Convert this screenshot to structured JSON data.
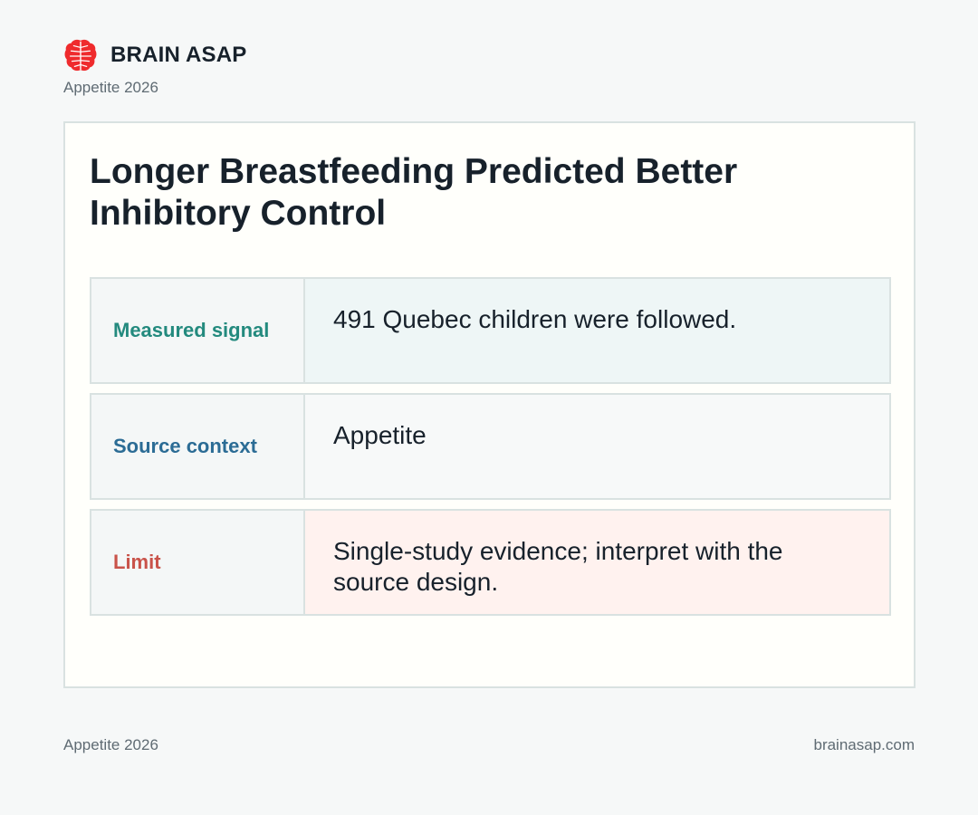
{
  "brand": {
    "name": "BRAIN ASAP",
    "logo_icon": "brain-icon",
    "accent_color": "#ef2b2d"
  },
  "header": {
    "subtitle": "Appetite 2026"
  },
  "card": {
    "title": "Longer Breastfeeding Predicted Better Inhibitory Control",
    "rows": [
      {
        "label": "Measured signal",
        "value": "491 Quebec children were followed.",
        "label_color": "#238a7e"
      },
      {
        "label": "Source context",
        "value": "Appetite",
        "label_color": "#2b6c95"
      },
      {
        "label": "Limit",
        "value": "Single-study evidence; interpret with the source design.",
        "label_color": "#c9534a"
      }
    ]
  },
  "footer": {
    "left": "Appetite 2026",
    "right": "brainasap.com"
  }
}
